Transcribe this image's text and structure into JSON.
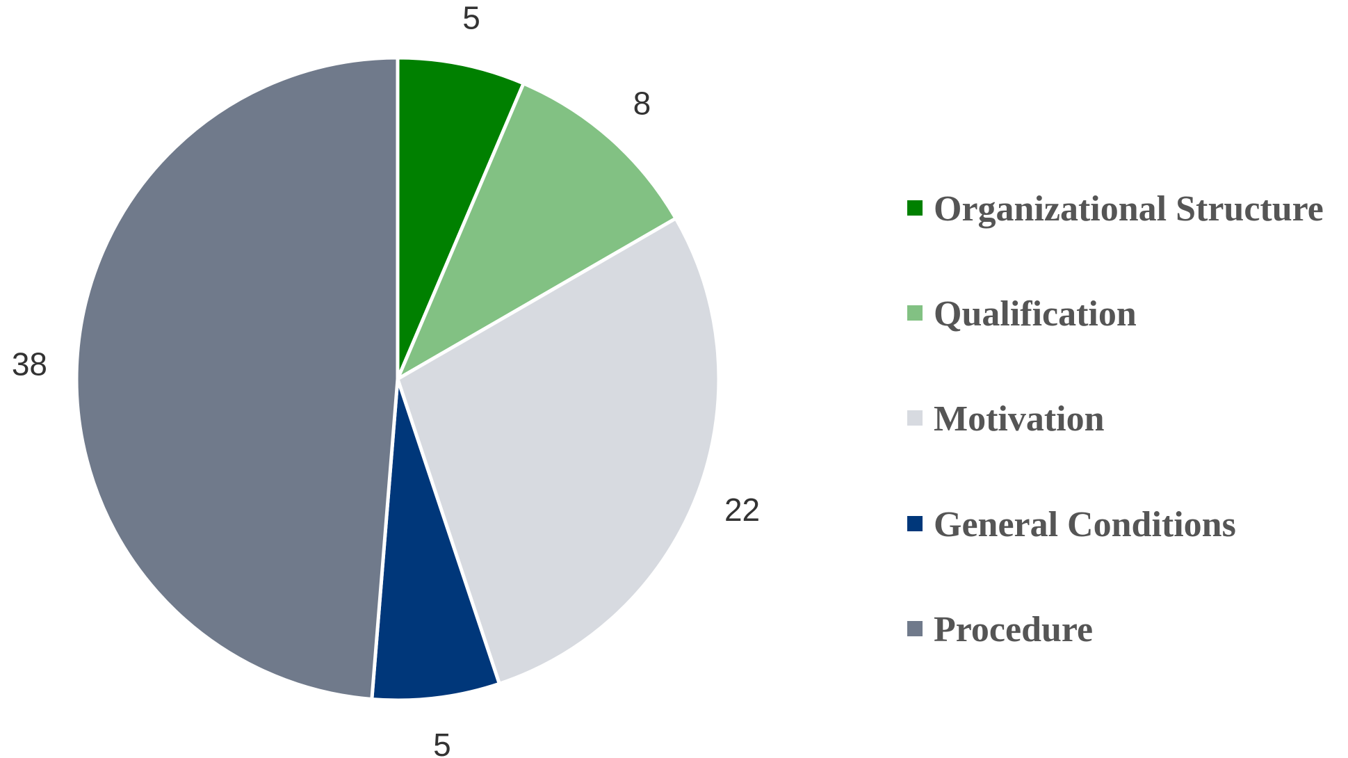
{
  "chart_data": {
    "type": "pie",
    "title": "",
    "start_angle_deg": 0,
    "direction": "clockwise",
    "slices": [
      {
        "label": "Organizational Structure",
        "value": 5,
        "color": "#008000"
      },
      {
        "label": "Qualification",
        "value": 8,
        "color": "#82C183"
      },
      {
        "label": "Motivation",
        "value": 22,
        "color": "#D7DAE0"
      },
      {
        "label": "General Conditions",
        "value": 5,
        "color": "#00377A"
      },
      {
        "label": "Procedure",
        "value": 38,
        "color": "#707A8B"
      }
    ],
    "data_labels": [
      "5",
      "8",
      "22",
      "5",
      "38"
    ],
    "legend": {
      "position": "right",
      "entries": [
        "Organizational Structure",
        "Qualification",
        "Motivation",
        "General Conditions",
        "Procedure"
      ]
    },
    "slice_border_color": "#FFFFFF"
  }
}
